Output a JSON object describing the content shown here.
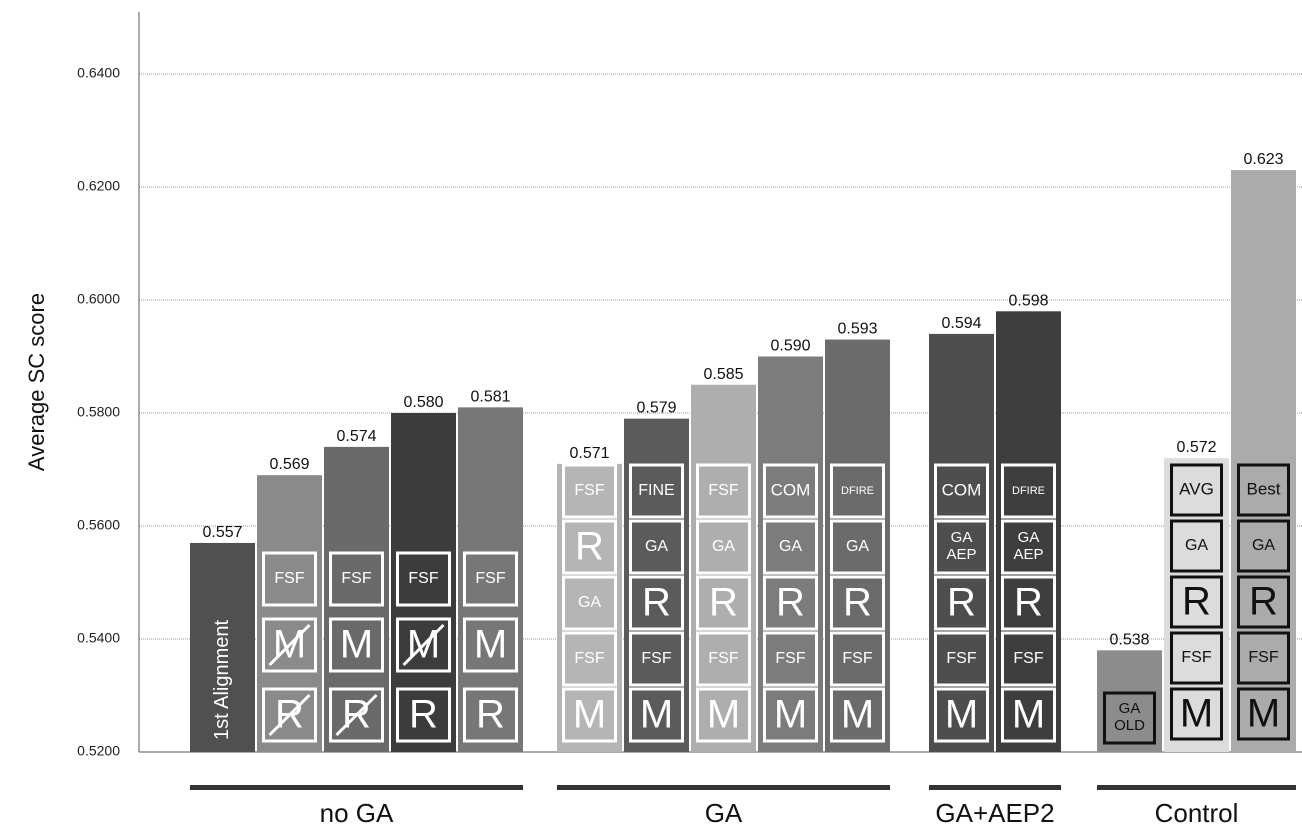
{
  "chart_data": {
    "type": "bar",
    "title": "",
    "xlabel": "",
    "ylabel": "Average SC score",
    "ylim": [
      0.52,
      0.655
    ],
    "yticks": [
      "0.5200",
      "0.5400",
      "0.5600",
      "0.5800",
      "0.6000",
      "0.6200",
      "0.6400"
    ],
    "grid": true,
    "legend": "none",
    "groups": [
      {
        "name": "no GA",
        "bars": [
          {
            "value": 0.557,
            "label": "0.557",
            "color": "#505050",
            "text": "1st Alignment",
            "boxes": []
          },
          {
            "value": 0.569,
            "label": "0.569",
            "color": "#8a8a8a",
            "boxes": [
              {
                "t": "R",
                "struck": true
              },
              {
                "t": "M",
                "struck": true
              },
              {
                "t": "FSF"
              }
            ]
          },
          {
            "value": 0.574,
            "label": "0.574",
            "color": "#6a6a6a",
            "boxes": [
              {
                "t": "R",
                "struck": true
              },
              {
                "t": "M"
              },
              {
                "t": "FSF"
              }
            ]
          },
          {
            "value": 0.58,
            "label": "0.580",
            "color": "#3c3c3c",
            "boxes": [
              {
                "t": "R"
              },
              {
                "t": "M",
                "struck": true
              },
              {
                "t": "FSF"
              }
            ]
          },
          {
            "value": 0.581,
            "label": "0.581",
            "color": "#777777",
            "boxes": [
              {
                "t": "R"
              },
              {
                "t": "M"
              },
              {
                "t": "FSF"
              }
            ]
          }
        ]
      },
      {
        "name": "GA",
        "bars": [
          {
            "value": 0.571,
            "label": "0.571",
            "color": "#b5b5b5",
            "boxes": [
              {
                "t": "M"
              },
              {
                "t": "FSF"
              },
              {
                "t": "GA"
              },
              {
                "t": "R"
              },
              {
                "t": "FSF"
              }
            ]
          },
          {
            "value": 0.579,
            "label": "0.579",
            "color": "#5b5b5b",
            "boxes": [
              {
                "t": "M"
              },
              {
                "t": "FSF"
              },
              {
                "t": "R"
              },
              {
                "t": "GA"
              },
              {
                "t": "FINE"
              }
            ]
          },
          {
            "value": 0.585,
            "label": "0.585",
            "color": "#aeaeae",
            "boxes": [
              {
                "t": "M"
              },
              {
                "t": "FSF"
              },
              {
                "t": "R"
              },
              {
                "t": "GA"
              },
              {
                "t": "FSF"
              }
            ]
          },
          {
            "value": 0.59,
            "label": "0.590",
            "color": "#7c7c7c",
            "boxes": [
              {
                "t": "M"
              },
              {
                "t": "FSF"
              },
              {
                "t": "R"
              },
              {
                "t": "GA"
              },
              {
                "t": "COM"
              }
            ]
          },
          {
            "value": 0.593,
            "label": "0.593",
            "color": "#6b6b6b",
            "boxes": [
              {
                "t": "M"
              },
              {
                "t": "FSF"
              },
              {
                "t": "R"
              },
              {
                "t": "GA"
              },
              {
                "t": "DFIRE"
              }
            ]
          }
        ]
      },
      {
        "name": "GA+AEP2",
        "bars": [
          {
            "value": 0.594,
            "label": "0.594",
            "color": "#4e4e4e",
            "boxes": [
              {
                "t": "M"
              },
              {
                "t": "FSF"
              },
              {
                "t": "R"
              },
              {
                "t": "GA AEP"
              },
              {
                "t": "COM"
              }
            ]
          },
          {
            "value": 0.598,
            "label": "0.598",
            "color": "#3e3e3e",
            "boxes": [
              {
                "t": "M"
              },
              {
                "t": "FSF"
              },
              {
                "t": "R"
              },
              {
                "t": "GA AEP"
              },
              {
                "t": "DFIRE"
              }
            ]
          }
        ]
      },
      {
        "name": "Control",
        "bars": [
          {
            "value": 0.538,
            "label": "0.538",
            "color": "#8c8c8c",
            "boxes": [
              {
                "t": "GA OLD"
              }
            ]
          },
          {
            "value": 0.572,
            "label": "0.572",
            "color": "#dcdcdc",
            "boxes": [
              {
                "t": "M"
              },
              {
                "t": "FSF"
              },
              {
                "t": "R"
              },
              {
                "t": "GA"
              },
              {
                "t": "AVG"
              }
            ]
          },
          {
            "value": 0.623,
            "label": "0.623",
            "color": "#ababab",
            "boxes": [
              {
                "t": "M"
              },
              {
                "t": "FSF"
              },
              {
                "t": "R"
              },
              {
                "t": "GA"
              },
              {
                "t": "Best"
              }
            ]
          }
        ]
      }
    ]
  }
}
